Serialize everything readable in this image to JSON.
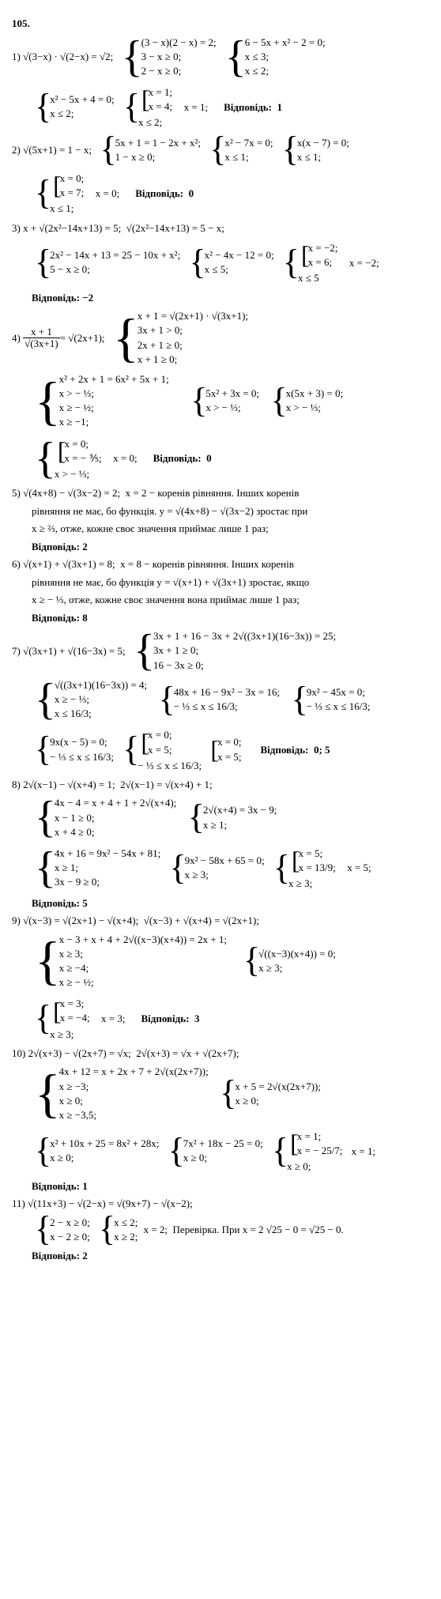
{
  "problem_number": "105.",
  "answer_label": "Відповідь:",
  "parts": {
    "p1": {
      "num": "1)",
      "eq1": "√(3−x) · √(2−x) = √2;",
      "sys1a": "(3 − x)(2 − x) = 2;",
      "sys1b": "3 − x ≥ 0;",
      "sys1c": "2 − x ≥ 0;",
      "sys2a": "6 − 5x + x² − 2 = 0;",
      "sys2b": "x ≤ 3;",
      "sys2c": "x ≤ 2;",
      "sys3a": "x² − 5x + 4 = 0;",
      "sys3b": "x ≤ 2;",
      "sys4a": "x = 1;",
      "sys4b": "x = 4;",
      "sys4c": "x ≤ 2;",
      "result": "x = 1;",
      "answer": "1"
    },
    "p2": {
      "num": "2)",
      "eq1": "√(5x+1) = 1 − x;",
      "sys1a": "5x + 1 = 1 − 2x + x²;",
      "sys1b": "1 − x ≥ 0;",
      "sys2a": "x² − 7x = 0;",
      "sys2b": "x ≤ 1;",
      "sys3a": "x(x − 7) = 0;",
      "sys3b": "x ≤ 1;",
      "sys4a": "x = 0;",
      "sys4b": "x = 7;",
      "sys4c": "x ≤ 1;",
      "result": "x = 0;",
      "answer": "0"
    },
    "p3": {
      "num": "3)",
      "eq1": "x + √(2x²−14x+13) = 5;",
      "eq2": "√(2x²−14x+13) = 5 − x;",
      "sys1a": "2x² − 14x + 13 = 25 − 10x + x²;",
      "sys1b": "5 − x ≥ 0;",
      "sys2a": "x² − 4x − 12 = 0;",
      "sys2b": "x ≤ 5;",
      "sys3a": "x = −2;",
      "sys3b": "x = 6;",
      "sys3c": "x ≤ 5",
      "result": "x = −2;",
      "answer": "−2"
    },
    "p4": {
      "num": "4)",
      "frac_n": "x + 1",
      "frac_d": "√(3x+1)",
      "eq_rhs": " = √(2x+1);",
      "sys1a": "x + 1 = √(2x+1) · √(3x+1);",
      "sys1b": "3x + 1 > 0;",
      "sys1c": "2x + 1 ≥ 0;",
      "sys1d": "x + 1 ≥ 0;",
      "sys2a": "x² + 2x + 1 = 6x² + 5x + 1;",
      "sys2b": "x > − ⅓;",
      "sys2c": "x ≥ − ½;",
      "sys2d": "x ≥ −1;",
      "sys3a": "5x² + 3x = 0;",
      "sys3b": "x > − ⅓;",
      "sys4a": "x(5x + 3) = 0;",
      "sys4b": "x > − ⅓;",
      "sys5a": "x = 0;",
      "sys5b": "x = − ⅗;",
      "sys5c": "x > − ⅓;",
      "result": "x = 0;",
      "answer": "0"
    },
    "p5": {
      "num": "5)",
      "eq": "√(4x+8) − √(3x−2) = 2;",
      "txt1": "x = 2  − коренів рівняння. Інших коренів",
      "txt2": "рівняння не має, бо функція.  y = √(4x+8) − √(3x−2)  зростає при",
      "txt3": "x ≥ ⅔, отже, кожне своє значення приймає лише 1 раз;",
      "answer": "2"
    },
    "p6": {
      "num": "6)",
      "eq": "√(x+1) + √(3x+1) = 8;",
      "txt1": "x = 8  − коренів рівняння. Інших коренів",
      "txt2": "рівняння не має, бо функція  y = √(x+1) + √(3x+1)  зростає, якщо",
      "txt3": "x ≥ − ⅓, отже, кожне своє значення вона приймає лише 1 раз;",
      "answer": "8"
    },
    "p7": {
      "num": "7)",
      "eq1": "√(3x+1) + √(16−3x) = 5;",
      "sys1a": "3x + 1 + 16 − 3x + 2√((3x+1)(16−3x)) = 25;",
      "sys1b": "3x + 1 ≥ 0;",
      "sys1c": "16 − 3x ≥ 0;",
      "sys2a": "√((3x+1)(16−3x)) = 4;",
      "sys2b": "x ≥ − ⅓;",
      "sys2c": "x ≤ 16/3;",
      "sys3a": "48x + 16 − 9x² − 3x = 16;",
      "sys3b": "− ⅓ ≤ x ≤ 16/3;",
      "sys4a": "9x² − 45x = 0;",
      "sys4b": "− ⅓ ≤ x ≤ 16/3;",
      "sys5a": "9x(x − 5) = 0;",
      "sys5b": "− ⅓ ≤ x ≤ 16/3;",
      "sys6a": "x = 0;",
      "sys6b": "x = 5;",
      "sys6c": "− ⅓ ≤ x ≤ 16/3;",
      "sys7a": "x = 0;",
      "sys7b": "x = 5;",
      "answer": "0;  5"
    },
    "p8": {
      "num": "8)",
      "eq1": "2√(x−1) − √(x+4) = 1;",
      "eq2": "2√(x−1) = √(x+4) + 1;",
      "sys1a": "4x − 4 = x + 4 + 1 + 2√(x+4);",
      "sys1b": "x − 1 ≥ 0;",
      "sys1c": "x + 4 ≥ 0;",
      "sys2a": "2√(x+4) = 3x − 9;",
      "sys2b": "x ≥ 1;",
      "sys3a": "4x + 16 = 9x² − 54x + 81;",
      "sys3b": "x ≥ 1;",
      "sys3c": "3x − 9 ≥ 0;",
      "sys4a": "9x² − 58x + 65 = 0;",
      "sys4b": "x ≥ 3;",
      "sys5a": "x = 5;",
      "sys5b": "x = 13/9;",
      "sys5c": "x ≥ 3;",
      "result": "x = 5;",
      "answer": "5"
    },
    "p9": {
      "num": "9)",
      "eq1": "√(x−3) = √(2x+1) − √(x+4);",
      "eq2": "√(x−3) + √(x+4) = √(2x+1);",
      "sys1a": "x − 3 + x + 4 + 2√((x−3)(x+4)) = 2x + 1;",
      "sys1b": "x ≥ 3;",
      "sys1c": "x ≥ −4;",
      "sys1d": "x ≥ − ½;",
      "sys2a": "√((x−3)(x+4)) = 0;",
      "sys2b": "x ≥ 3;",
      "sys3a": "x = 3;",
      "sys3b": "x = −4;",
      "sys3c": "x ≥ 3;",
      "result": "x = 3;",
      "answer": "3"
    },
    "p10": {
      "num": "10)",
      "eq1": "2√(x+3) − √(2x+7) = √x;",
      "eq2": "2√(x+3) = √x + √(2x+7);",
      "sys1a": "4x + 12 = x + 2x + 7 + 2√(x(2x+7));",
      "sys1b": "x ≥ −3;",
      "sys1c": "x ≥ 0;",
      "sys1d": "x ≥ −3,5;",
      "sys2a": "x + 5 = 2√(x(2x+7));",
      "sys2b": "x ≥ 0;",
      "sys3a": "x² + 10x + 25 = 8x² + 28x;",
      "sys3b": "x ≥ 0;",
      "sys4a": "7x² + 18x − 25 = 0;",
      "sys4b": "x ≥ 0;",
      "sys5a": "x = 1;",
      "sys5b": "x = − 25/7;",
      "sys5c": "x ≥ 0;",
      "result": "x = 1;",
      "answer": "1"
    },
    "p11": {
      "num": "11)",
      "eq1": "√(11x+3) − √(2−x) = √(9x+7) − √(x−2);",
      "sys1a": "2 − x ≥ 0;",
      "sys1b": "x − 2 ≥ 0;",
      "sys2a": "x ≤ 2;",
      "sys2b": "x ≥ 2;",
      "result": "x = 2;",
      "check": "Перевірка. При  x = 2   √25 − 0 = √25 − 0.",
      "answer": "2"
    }
  }
}
